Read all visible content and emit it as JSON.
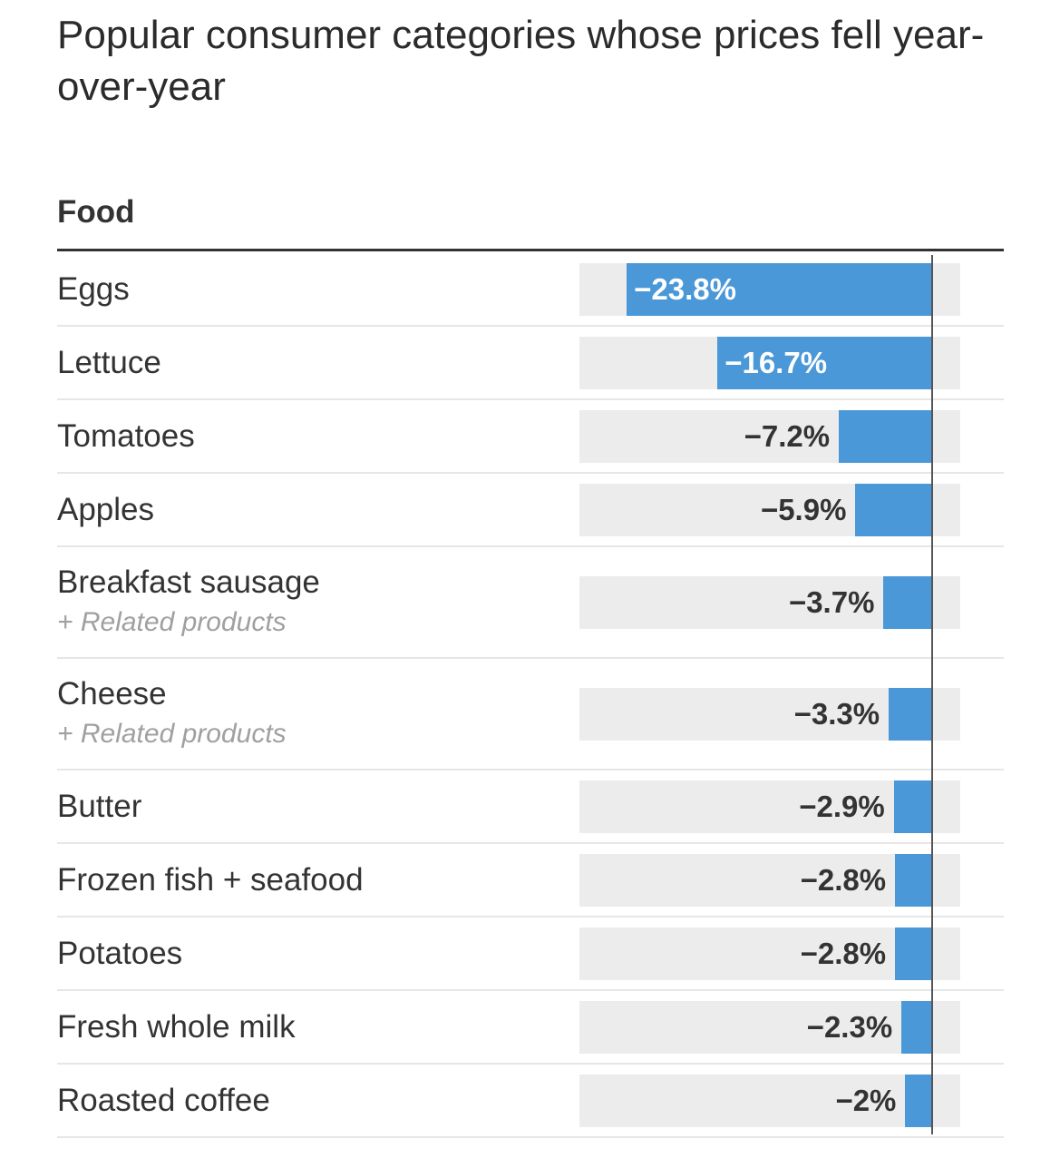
{
  "title": "Popular consumer categories whose prices fell year-over-year",
  "section": "Food",
  "colors": {
    "bar": "#4a98d8",
    "track": "#ececec",
    "zero_line": "#555555"
  },
  "chart_data": {
    "type": "bar",
    "orientation": "horizontal",
    "title": "Popular consumer categories whose prices fell year-over-year",
    "unit": "%",
    "xlim": [
      -27.5,
      2.3
    ],
    "categories": [
      "Eggs",
      "Lettuce",
      "Tomatoes",
      "Apples",
      "Breakfast sausage",
      "Cheese",
      "Butter",
      "Frozen fish + seafood",
      "Potatoes",
      "Fresh whole milk",
      "Roasted coffee"
    ],
    "sublabels": [
      "",
      "",
      "",
      "",
      "+ Related products",
      "+ Related products",
      "",
      "",
      "",
      "",
      ""
    ],
    "values": [
      -23.8,
      -16.7,
      -7.2,
      -5.9,
      -3.7,
      -3.3,
      -2.9,
      -2.8,
      -2.8,
      -2.3,
      -2
    ],
    "value_labels": [
      "−23.8%",
      "−16.7%",
      "−7.2%",
      "−5.9%",
      "−3.7%",
      "−3.3%",
      "−2.9%",
      "−2.8%",
      "−2.8%",
      "−2.3%",
      "−2%"
    ]
  }
}
